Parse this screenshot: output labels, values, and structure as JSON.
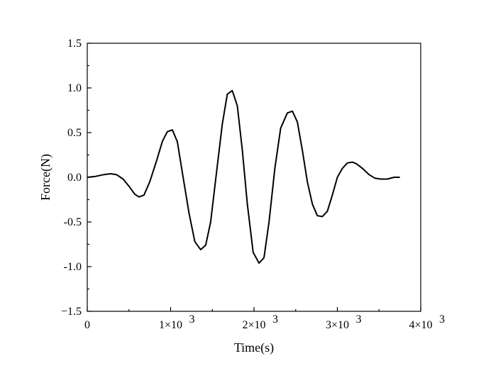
{
  "chart_data": {
    "type": "line",
    "title": "",
    "xlabel": "Time(s)",
    "ylabel": "Force(N)",
    "xlim": [
      0,
      4000
    ],
    "ylim": [
      -1.5,
      1.5
    ],
    "grid": false,
    "x_ticks": [
      {
        "value": 0,
        "label": "0",
        "exp": ""
      },
      {
        "value": 1000,
        "label": "1×10",
        "exp": "3"
      },
      {
        "value": 2000,
        "label": "2×10",
        "exp": "3"
      },
      {
        "value": 3000,
        "label": "3×10",
        "exp": "3"
      },
      {
        "value": 4000,
        "label": "4×10",
        "exp": "3"
      }
    ],
    "y_ticks": [
      {
        "value": 1.5,
        "label": "1.5"
      },
      {
        "value": 1.0,
        "label": "1.0"
      },
      {
        "value": 0.5,
        "label": "0.5"
      },
      {
        "value": 0.0,
        "label": "0.0"
      },
      {
        "value": -0.5,
        "label": "-0.5"
      },
      {
        "value": -1.0,
        "label": "-1.0"
      },
      {
        "value": -1.5,
        "label": "−1.5"
      }
    ],
    "series": [
      {
        "x": [
          0,
          100,
          200,
          280,
          350,
          430,
          500,
          570,
          620,
          680,
          750,
          830,
          900,
          960,
          1020,
          1080,
          1150,
          1220,
          1290,
          1360,
          1420,
          1480,
          1550,
          1620,
          1680,
          1740,
          1800,
          1860,
          1920,
          1990,
          2060,
          2120,
          2180,
          2250,
          2320,
          2400,
          2460,
          2520,
          2580,
          2640,
          2700,
          2760,
          2820,
          2880,
          2940,
          3000,
          3060,
          3120,
          3180,
          3230,
          3300,
          3380,
          3450,
          3520,
          3600,
          3680,
          3750
        ],
        "y": [
          0.0,
          0.01,
          0.03,
          0.04,
          0.03,
          -0.02,
          -0.1,
          -0.19,
          -0.22,
          -0.2,
          -0.05,
          0.18,
          0.4,
          0.51,
          0.53,
          0.4,
          0.0,
          -0.4,
          -0.72,
          -0.81,
          -0.76,
          -0.5,
          0.05,
          0.6,
          0.93,
          0.97,
          0.8,
          0.3,
          -0.3,
          -0.84,
          -0.96,
          -0.9,
          -0.5,
          0.1,
          0.55,
          0.72,
          0.74,
          0.62,
          0.3,
          -0.05,
          -0.3,
          -0.43,
          -0.44,
          -0.38,
          -0.2,
          0.0,
          0.1,
          0.16,
          0.17,
          0.15,
          0.1,
          0.03,
          -0.01,
          -0.02,
          -0.02,
          0.0,
          0.0
        ]
      }
    ]
  }
}
